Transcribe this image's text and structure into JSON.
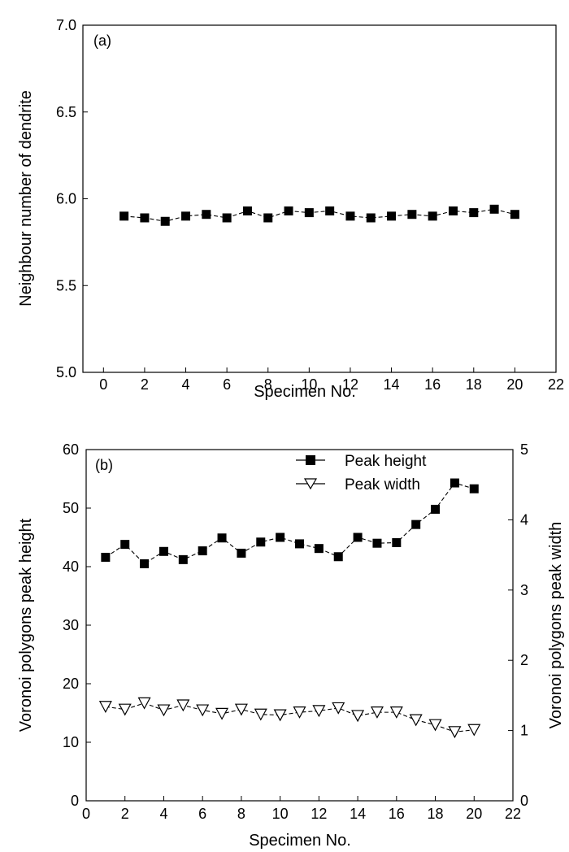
{
  "chart_data": [
    {
      "type": "line",
      "panel_label": "(a)",
      "xlabel": "Specimen No.",
      "ylabel": "Neighbour number of dendrite",
      "xlim": [
        -1,
        22
      ],
      "ylim": [
        5.0,
        7.0
      ],
      "x_ticks": [
        0,
        2,
        4,
        6,
        8,
        10,
        12,
        14,
        16,
        18,
        20,
        22
      ],
      "x_tick_labels": [
        "0",
        "2",
        "4",
        "6",
        "8",
        "10",
        "12",
        "14",
        "16",
        "18",
        "20",
        "22"
      ],
      "y_ticks": [
        5.0,
        5.5,
        6.0,
        6.5,
        7.0
      ],
      "y_tick_labels": [
        "5.0",
        "5.5",
        "6.0",
        "6.5",
        "7.0"
      ],
      "grid": false,
      "series": [
        {
          "marker": "filled-square",
          "line": "dashed",
          "x": [
            1,
            2,
            3,
            4,
            5,
            6,
            7,
            8,
            9,
            10,
            11,
            12,
            13,
            14,
            15,
            16,
            17,
            18,
            19,
            20
          ],
          "y": [
            5.9,
            5.89,
            5.87,
            5.9,
            5.91,
            5.89,
            5.93,
            5.89,
            5.93,
            5.92,
            5.93,
            5.9,
            5.89,
            5.9,
            5.91,
            5.9,
            5.93,
            5.92,
            5.94,
            5.91
          ]
        }
      ]
    },
    {
      "type": "line",
      "panel_label": "(b)",
      "xlabel": "Specimen No.",
      "ylabel": "Voronoi polygons peak height",
      "y2label": "Voronoi polygons peak width",
      "xlim": [
        0,
        22
      ],
      "ylim": [
        0,
        60
      ],
      "y2lim": [
        0,
        5
      ],
      "x_ticks": [
        0,
        2,
        4,
        6,
        8,
        10,
        12,
        14,
        16,
        18,
        20,
        22
      ],
      "x_tick_labels": [
        "0",
        "2",
        "4",
        "6",
        "8",
        "10",
        "12",
        "14",
        "16",
        "18",
        "20",
        "22"
      ],
      "y_ticks": [
        0,
        10,
        20,
        30,
        40,
        50,
        60
      ],
      "y_tick_labels": [
        "0",
        "10",
        "20",
        "30",
        "40",
        "50",
        "60"
      ],
      "y2_ticks": [
        0,
        1,
        2,
        3,
        4,
        5
      ],
      "y2_tick_labels": [
        "0",
        "1",
        "2",
        "3",
        "4",
        "5"
      ],
      "grid": false,
      "legend_position": "top-right",
      "series": [
        {
          "name": "Peak height",
          "axis": "left",
          "marker": "filled-square",
          "line": "dashed",
          "x": [
            1,
            2,
            3,
            4,
            5,
            6,
            7,
            8,
            9,
            10,
            11,
            12,
            13,
            14,
            15,
            16,
            17,
            18,
            19,
            20
          ],
          "y": [
            41.6,
            43.8,
            40.5,
            42.6,
            41.2,
            42.7,
            44.9,
            42.3,
            44.2,
            45.0,
            43.9,
            43.1,
            41.7,
            45.0,
            44.0,
            44.1,
            47.2,
            49.8,
            54.3,
            53.3
          ]
        },
        {
          "name": "Peak width",
          "axis": "right",
          "marker": "open-triangle-down",
          "line": "dashed",
          "x": [
            1,
            2,
            3,
            4,
            5,
            6,
            7,
            8,
            9,
            10,
            11,
            12,
            13,
            14,
            15,
            16,
            17,
            18,
            19,
            20
          ],
          "y": [
            1.34,
            1.3,
            1.39,
            1.29,
            1.36,
            1.29,
            1.24,
            1.3,
            1.23,
            1.22,
            1.26,
            1.28,
            1.32,
            1.21,
            1.26,
            1.26,
            1.15,
            1.08,
            0.98,
            1.01
          ]
        }
      ]
    }
  ]
}
